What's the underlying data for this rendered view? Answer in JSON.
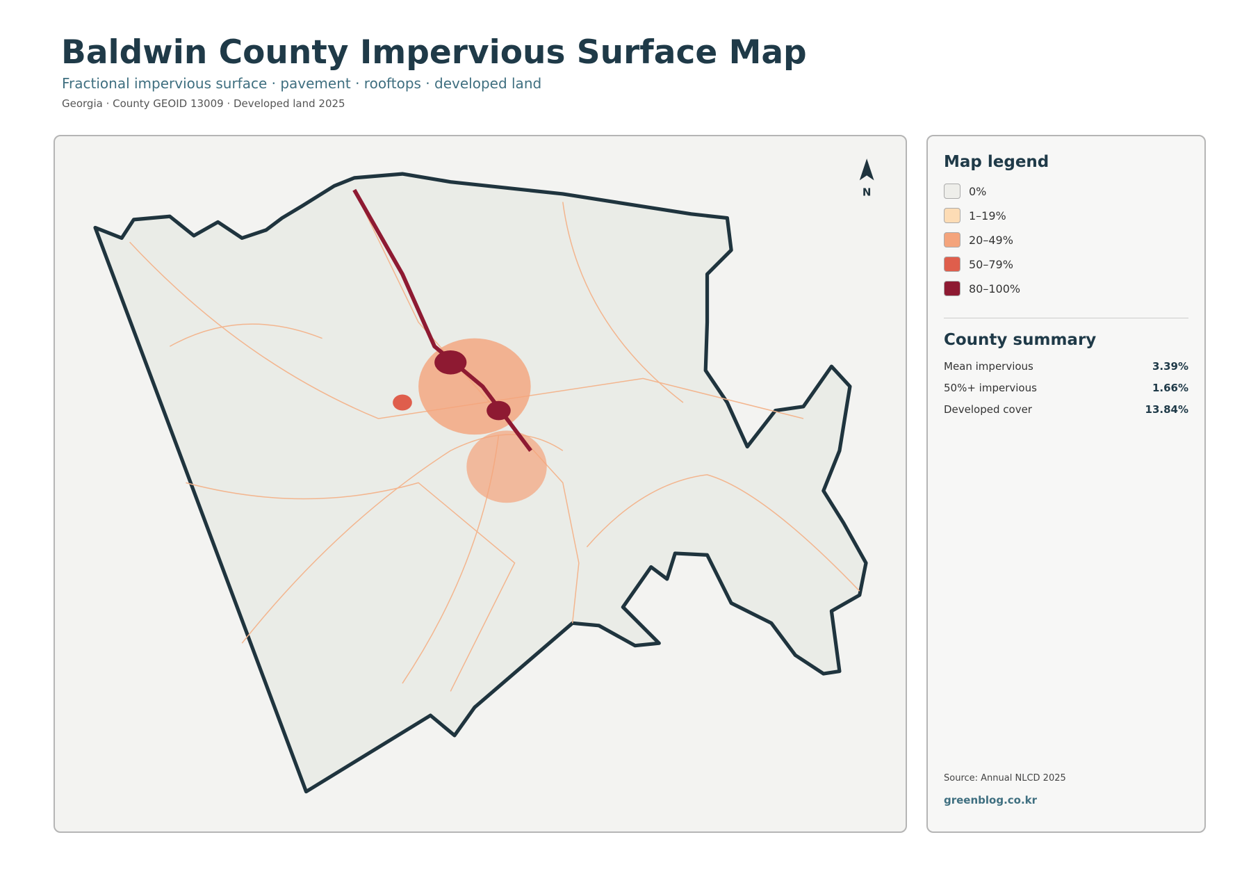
{
  "header": {
    "title": "Baldwin County Impervious Surface Map",
    "subtitle": "Fractional impervious surface · pavement · rooftops · developed land",
    "meta": "Georgia · County GEOID 13009 · Developed land 2025"
  },
  "map": {
    "north_label": "N"
  },
  "legend": {
    "title": "Map legend",
    "items": [
      {
        "label": "0%",
        "color": "#eeeeea"
      },
      {
        "label": "1–19%",
        "color": "#fddcb5"
      },
      {
        "label": "20–49%",
        "color": "#f4a47c"
      },
      {
        "label": "50–79%",
        "color": "#df5e4c"
      },
      {
        "label": "80–100%",
        "color": "#8e1a32"
      }
    ]
  },
  "summary": {
    "title": "County summary",
    "rows": [
      {
        "label": "Mean impervious",
        "value": "3.39%"
      },
      {
        "label": "50%+ impervious",
        "value": "1.66%"
      },
      {
        "label": "Developed cover",
        "value": "13.84%"
      }
    ]
  },
  "footer": {
    "source": "Source: Annual NLCD 2025",
    "site": "greenblog.co.kr"
  }
}
